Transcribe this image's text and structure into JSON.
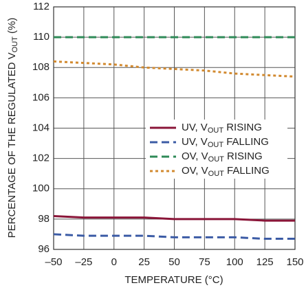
{
  "chart_data": {
    "type": "line",
    "xlabel": "TEMPERATURE (°C)",
    "ylabel": "PERCENTAGE OF THE REGULATED VOUT (%)",
    "x": [
      -50,
      -25,
      0,
      25,
      50,
      75,
      100,
      125,
      150
    ],
    "series": [
      {
        "name": "UV, VOUT RISING",
        "color": "#8a1538",
        "dash": "solid",
        "values": [
          98.2,
          98.1,
          98.1,
          98.1,
          98.0,
          98.0,
          98.0,
          97.9,
          97.9
        ]
      },
      {
        "name": "UV, VOUT FALLING",
        "color": "#3b5ba5",
        "dash": "dashed",
        "values": [
          97.0,
          96.9,
          96.9,
          96.9,
          96.8,
          96.8,
          96.8,
          96.7,
          96.7
        ]
      },
      {
        "name": "OV, VOUT RISING",
        "color": "#2e8a57",
        "dash": "dashed",
        "values": [
          110,
          110,
          110,
          110,
          110,
          110,
          110,
          110,
          110
        ]
      },
      {
        "name": "OV, VOUT FALLING",
        "color": "#d28a30",
        "dash": "dotted",
        "values": [
          108.4,
          108.3,
          108.2,
          108.0,
          107.9,
          107.8,
          107.6,
          107.5,
          107.4
        ]
      }
    ],
    "xlim": [
      -50,
      150
    ],
    "xticks": [
      {
        "value": -50,
        "label": "–50"
      },
      {
        "value": -25,
        "label": "–25"
      },
      0,
      25,
      50,
      75,
      100,
      125,
      150
    ],
    "ylim": [
      96,
      112
    ],
    "yticks": [
      96,
      98,
      100,
      102,
      104,
      106,
      108,
      110,
      112
    ],
    "grid": true
  }
}
